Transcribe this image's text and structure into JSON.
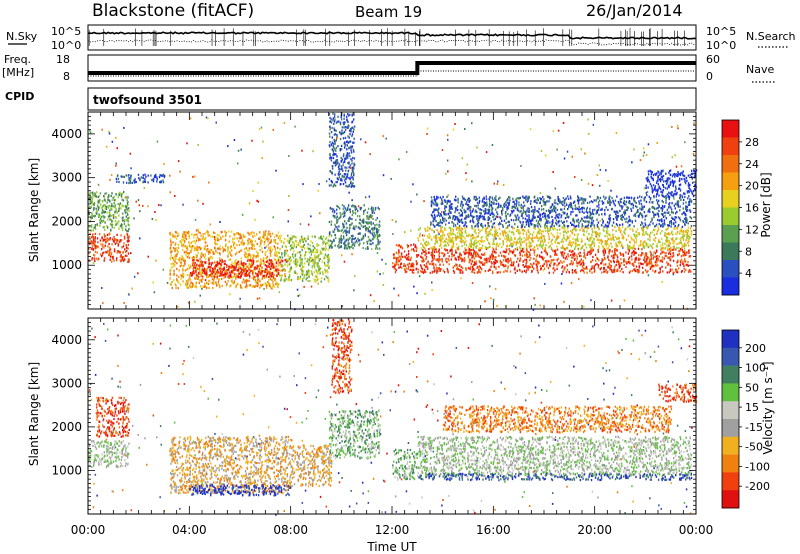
{
  "header": {
    "station": "Blackstone (fitACF)",
    "beam": "Beam 19",
    "date": "26/Jan/2014"
  },
  "noise_panel": {
    "left_label": "N.Sky",
    "right_label": "N.Search",
    "left_ticks": [
      "10^5",
      "10^0"
    ],
    "right_ticks": [
      "10^5",
      "10^0"
    ]
  },
  "freq_panel": {
    "left_label_1": "Freq.",
    "left_label_2": "[MHz]",
    "right_label": "Nave",
    "left_ticks": [
      "18",
      "8"
    ],
    "right_ticks": [
      "60",
      "0"
    ],
    "cpid_label": "CPID",
    "cpid_name": "twofsound 3501"
  },
  "colors": {
    "power": [
      "#1a2ee0",
      "#2a4fbf",
      "#3a7a5a",
      "#5aa050",
      "#9acc30",
      "#e8d020",
      "#f5a010",
      "#f07010",
      "#ee4010",
      "#e81010"
    ],
    "velocity": [
      "#2030c0",
      "#3858b0",
      "#408060",
      "#60c040",
      "#c8c8c0",
      "#a0a0a0",
      "#f0b020",
      "#f08010",
      "#f04010",
      "#e01010"
    ]
  },
  "chart_data": [
    {
      "type": "heatmap",
      "name": "power",
      "xlabel": "",
      "ylabel": "Slant Range [km]",
      "xlim": [
        0,
        24
      ],
      "ylim": [
        0,
        4500
      ],
      "y_ticks": [
        "1000",
        "2000",
        "3000",
        "4000"
      ],
      "colorbar_label": "Power [dB]",
      "colorbar_ticks": [
        "4",
        "8",
        "12",
        "16",
        "20",
        "24",
        "28"
      ],
      "regions": [
        {
          "t0": 0.0,
          "t1": 1.6,
          "r0": 1100,
          "r1": 1750,
          "level": 8
        },
        {
          "t0": 0.0,
          "t1": 1.6,
          "r0": 1800,
          "r1": 2700,
          "level": 3
        },
        {
          "t0": 1.0,
          "t1": 3.0,
          "r0": 2900,
          "r1": 3100,
          "level": 1
        },
        {
          "t0": 3.2,
          "t1": 7.5,
          "r0": 500,
          "r1": 1800,
          "level": 6
        },
        {
          "t0": 4.0,
          "t1": 7.8,
          "r0": 750,
          "r1": 1150,
          "level": 9
        },
        {
          "t0": 7.5,
          "t1": 9.5,
          "r0": 650,
          "r1": 1700,
          "level": 4
        },
        {
          "t0": 9.5,
          "t1": 10.5,
          "r0": 2800,
          "r1": 4500,
          "level": 1
        },
        {
          "t0": 9.5,
          "t1": 11.5,
          "r0": 1400,
          "r1": 2400,
          "level": 2
        },
        {
          "t0": 12.0,
          "t1": 13.0,
          "r0": 850,
          "r1": 1500,
          "level": 8
        },
        {
          "t0": 13.0,
          "t1": 23.8,
          "r0": 850,
          "r1": 1400,
          "level": 8
        },
        {
          "t0": 13.0,
          "t1": 23.8,
          "r0": 1400,
          "r1": 1900,
          "level": 5
        },
        {
          "t0": 13.5,
          "t1": 23.8,
          "r0": 1900,
          "r1": 2600,
          "level": 1
        },
        {
          "t0": 22.0,
          "t1": 24.0,
          "r0": 2600,
          "r1": 3200,
          "level": 0
        }
      ]
    },
    {
      "type": "heatmap",
      "name": "velocity",
      "xlabel": "Time UT",
      "ylabel": "Slant Range [km]",
      "xlim": [
        0,
        24
      ],
      "ylim": [
        0,
        4500
      ],
      "x_ticks": [
        "00:00",
        "04:00",
        "08:00",
        "12:00",
        "16:00",
        "20:00",
        "00:00"
      ],
      "y_ticks": [
        "1000",
        "2000",
        "3000",
        "4000"
      ],
      "colorbar_label": "Velocity [m s⁻¹]",
      "colorbar_ticks": [
        "200",
        "100",
        "50",
        "15",
        "-15",
        "-50",
        "-100",
        "-200"
      ],
      "regions": [
        {
          "t0": 0.0,
          "t1": 1.6,
          "r0": 1100,
          "r1": 1700,
          "level": 4
        },
        {
          "t0": 0.3,
          "t1": 1.6,
          "r0": 1800,
          "r1": 2700,
          "level": 8
        },
        {
          "t0": 3.2,
          "t1": 8.0,
          "r0": 500,
          "r1": 1800,
          "level": 6
        },
        {
          "t0": 4.0,
          "t1": 8.0,
          "r0": 450,
          "r1": 700,
          "level": 0
        },
        {
          "t0": 8.0,
          "t1": 9.6,
          "r0": 650,
          "r1": 1600,
          "level": 6
        },
        {
          "t0": 9.5,
          "t1": 11.5,
          "r0": 1300,
          "r1": 2400,
          "level": 3
        },
        {
          "t0": 9.6,
          "t1": 10.4,
          "r0": 2800,
          "r1": 4500,
          "level": 8
        },
        {
          "t0": 12.0,
          "t1": 13.0,
          "r0": 800,
          "r1": 1500,
          "level": 3
        },
        {
          "t0": 13.0,
          "t1": 23.8,
          "r0": 900,
          "r1": 1800,
          "level": 4
        },
        {
          "t0": 13.0,
          "t1": 23.8,
          "r0": 800,
          "r1": 950,
          "level": 1
        },
        {
          "t0": 14.0,
          "t1": 23.0,
          "r0": 1900,
          "r1": 2500,
          "level": 7
        },
        {
          "t0": 22.5,
          "t1": 24.0,
          "r0": 2600,
          "r1": 3000,
          "level": 8
        }
      ]
    }
  ]
}
